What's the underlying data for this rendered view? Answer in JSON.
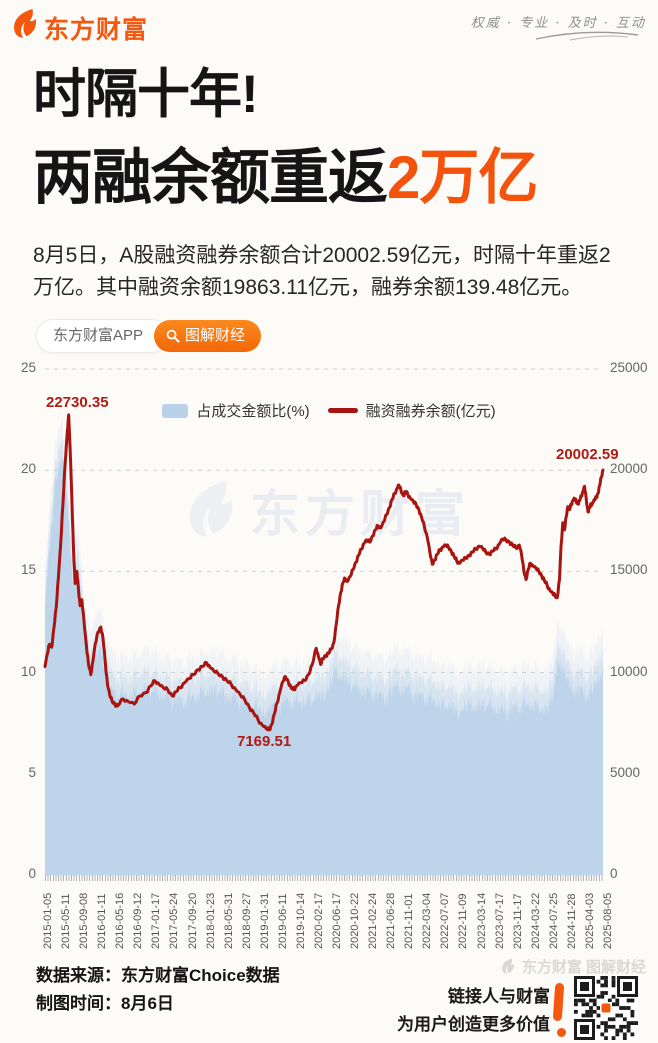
{
  "header": {
    "logo_text": "东方财富",
    "slogan": "权威 · 专业 · 及时 · 互动"
  },
  "title": {
    "line1": "时隔十年!",
    "line2_black": "两融余额重返",
    "line2_orange": "2万亿"
  },
  "intro": "8月5日，A股融资融券余额合计20002.59亿元，时隔十年重返2万亿。其中融资余额19863.11亿元，融券余额139.48亿元。",
  "badges": {
    "app": "东方财富APP",
    "column": "图解财经"
  },
  "colors": {
    "brand_orange": "#f4570e",
    "line_red": "#a81410",
    "area_blue": "#bdd4ea",
    "annotation_red": "#b01b12",
    "grid_gray": "#cfcfcf"
  },
  "watermark": {
    "chart": "东方财富",
    "footer": "东方财富 图解财经"
  },
  "chart_data": {
    "type": "line+area",
    "legend_position": "top",
    "grid": true,
    "left_axis": {
      "title": "占成交金额比(%)",
      "ticks": [
        25,
        20,
        15,
        10,
        5,
        0
      ],
      "max": 25
    },
    "right_axis": {
      "title": "融资融券余额(亿元)",
      "ticks": [
        25000,
        20000,
        15000,
        10000,
        5000,
        0
      ],
      "max": 25000
    },
    "x_labels": [
      "2015-01-05",
      "2015-05-11",
      "2015-09-08",
      "2016-01-11",
      "2016-05-16",
      "2016-09-12",
      "2017-01-17",
      "2017-05-24",
      "2017-09-20",
      "2018-01-23",
      "2018-05-31",
      "2018-09-27",
      "2019-01-31",
      "2019-06-11",
      "2019-10-14",
      "2020-02-17",
      "2020-06-17",
      "2020-10-22",
      "2021-02-24",
      "2021-06-28",
      "2021-11-01",
      "2022-03-04",
      "2022-07-07",
      "2022-11-09",
      "2023-03-14",
      "2023-07-17",
      "2023-11-17",
      "2024-03-22",
      "2024-07-25",
      "2024-11-28",
      "2025-04-03",
      "2025-08-05"
    ],
    "annotations": [
      {
        "text": "22730.35",
        "series": "融资融券余额(亿元)",
        "note": "2015 peak"
      },
      {
        "text": "7169.51",
        "series": "融资融券余额(亿元)",
        "note": "2019 trough"
      },
      {
        "text": "20002.59",
        "series": "融资融券余额(亿元)",
        "note": "2025-08-05 latest"
      }
    ],
    "noise_pattern": [
      0,
      0.55,
      -0.4,
      0.85,
      -0.65,
      0.35,
      -0.9,
      0.6,
      -0.25,
      1.0,
      -0.75,
      0.3
    ],
    "series": [
      {
        "name": "占成交金额比(%)",
        "type": "area",
        "axis": "left",
        "color": "#bdd4ea",
        "noise_amp": 0.5,
        "halo_offsets": [
          0.9,
          1.9
        ],
        "halo_opacities": [
          0.45,
          0.18
        ],
        "t_uniform": true,
        "values": [
          13.2,
          16.8,
          19.6,
          20.6,
          18.4,
          14.2,
          15.1,
          11.8,
          10.2,
          10.8,
          11.2,
          9.6,
          9.2,
          8.7,
          9.1,
          8.6,
          9.2,
          8.8,
          9.4,
          8.9,
          9.2,
          8.7,
          9.0,
          8.5,
          8.8,
          8.4,
          9.0,
          8.6,
          9.2,
          8.8,
          9.3,
          8.9,
          9.1,
          8.6,
          8.9,
          8.4,
          8.7,
          8.2,
          8.4,
          7.9,
          8.1,
          8.5,
          8.2,
          8.8,
          8.4,
          8.7,
          8.3,
          8.8,
          8.5,
          9.0,
          8.8,
          9.3,
          10.2,
          9.6,
          9.8,
          9.2,
          9.4,
          8.9,
          9.2,
          8.8,
          9.0,
          8.6,
          9.1,
          9.4,
          9.0,
          9.3,
          8.8,
          9.0,
          8.6,
          8.9,
          8.4,
          8.6,
          8.2,
          8.5,
          7.9,
          8.2,
          8.5,
          8.1,
          8.6,
          8.2,
          8.5,
          8.0,
          8.3,
          7.9,
          8.4,
          8.1,
          8.6,
          8.2,
          8.5,
          8.0,
          8.3,
          8.8,
          10.6,
          10.0,
          9.4,
          9.0,
          9.3,
          8.7,
          9.2,
          9.6,
          10.1
        ]
      },
      {
        "name": "融资融券余额(亿元)",
        "type": "line",
        "axis": "right",
        "color": "#a81410",
        "noise_amp": 90,
        "points": [
          [
            0,
            10300
          ],
          [
            0.004,
            10900
          ],
          [
            0.008,
            11400
          ],
          [
            0.012,
            11250
          ],
          [
            0.016,
            12200
          ],
          [
            0.02,
            13200
          ],
          [
            0.024,
            14700
          ],
          [
            0.028,
            16300
          ],
          [
            0.032,
            18300
          ],
          [
            0.036,
            20300
          ],
          [
            0.04,
            21900
          ],
          [
            0.0425,
            22730.35
          ],
          [
            0.045,
            21100
          ],
          [
            0.048,
            18700
          ],
          [
            0.051,
            16100
          ],
          [
            0.054,
            14400
          ],
          [
            0.057,
            15000
          ],
          [
            0.06,
            14100
          ],
          [
            0.063,
            13300
          ],
          [
            0.066,
            13600
          ],
          [
            0.07,
            12500
          ],
          [
            0.074,
            11400
          ],
          [
            0.078,
            10400
          ],
          [
            0.082,
            9900
          ],
          [
            0.086,
            10600
          ],
          [
            0.09,
            11400
          ],
          [
            0.095,
            12000
          ],
          [
            0.1,
            12250
          ],
          [
            0.104,
            11700
          ],
          [
            0.108,
            10500
          ],
          [
            0.112,
            9400
          ],
          [
            0.116,
            8900
          ],
          [
            0.12,
            8600
          ],
          [
            0.125,
            8450
          ],
          [
            0.13,
            8350
          ],
          [
            0.14,
            8700
          ],
          [
            0.15,
            8550
          ],
          [
            0.16,
            8450
          ],
          [
            0.17,
            8850
          ],
          [
            0.18,
            9000
          ],
          [
            0.19,
            9350
          ],
          [
            0.197,
            9600
          ],
          [
            0.205,
            9400
          ],
          [
            0.212,
            9250
          ],
          [
            0.22,
            9150
          ],
          [
            0.228,
            8850
          ],
          [
            0.235,
            9050
          ],
          [
            0.242,
            9250
          ],
          [
            0.25,
            9500
          ],
          [
            0.258,
            9700
          ],
          [
            0.266,
            9900
          ],
          [
            0.274,
            10150
          ],
          [
            0.282,
            10300
          ],
          [
            0.29,
            10480
          ],
          [
            0.296,
            10250
          ],
          [
            0.302,
            10100
          ],
          [
            0.31,
            9950
          ],
          [
            0.318,
            9800
          ],
          [
            0.326,
            9600
          ],
          [
            0.334,
            9400
          ],
          [
            0.342,
            9150
          ],
          [
            0.35,
            8900
          ],
          [
            0.358,
            8650
          ],
          [
            0.366,
            8300
          ],
          [
            0.374,
            8000
          ],
          [
            0.382,
            7650
          ],
          [
            0.39,
            7380
          ],
          [
            0.396,
            7250
          ],
          [
            0.402,
            7169.51
          ],
          [
            0.406,
            7420
          ],
          [
            0.411,
            7950
          ],
          [
            0.416,
            8500
          ],
          [
            0.421,
            9050
          ],
          [
            0.426,
            9550
          ],
          [
            0.431,
            9800
          ],
          [
            0.436,
            9550
          ],
          [
            0.441,
            9250
          ],
          [
            0.446,
            9150
          ],
          [
            0.451,
            9350
          ],
          [
            0.458,
            9500
          ],
          [
            0.465,
            9600
          ],
          [
            0.472,
            9900
          ],
          [
            0.479,
            10400
          ],
          [
            0.486,
            11200
          ],
          [
            0.49,
            10800
          ],
          [
            0.494,
            10400
          ],
          [
            0.498,
            10700
          ],
          [
            0.503,
            10850
          ],
          [
            0.508,
            10950
          ],
          [
            0.513,
            11150
          ],
          [
            0.518,
            11500
          ],
          [
            0.522,
            12400
          ],
          [
            0.526,
            13300
          ],
          [
            0.53,
            13950
          ],
          [
            0.534,
            14450
          ],
          [
            0.538,
            14650
          ],
          [
            0.542,
            14500
          ],
          [
            0.547,
            14750
          ],
          [
            0.552,
            15100
          ],
          [
            0.557,
            15450
          ],
          [
            0.562,
            15800
          ],
          [
            0.567,
            16100
          ],
          [
            0.572,
            16400
          ],
          [
            0.577,
            16550
          ],
          [
            0.582,
            16450
          ],
          [
            0.587,
            16750
          ],
          [
            0.592,
            17050
          ],
          [
            0.597,
            17250
          ],
          [
            0.602,
            17150
          ],
          [
            0.607,
            17450
          ],
          [
            0.612,
            17800
          ],
          [
            0.617,
            18150
          ],
          [
            0.622,
            18550
          ],
          [
            0.627,
            18850
          ],
          [
            0.631,
            19100
          ],
          [
            0.634,
            19270
          ],
          [
            0.638,
            19000
          ],
          [
            0.642,
            18750
          ],
          [
            0.646,
            18950
          ],
          [
            0.65,
            18800
          ],
          [
            0.655,
            18600
          ],
          [
            0.66,
            18450
          ],
          [
            0.665,
            18300
          ],
          [
            0.67,
            18050
          ],
          [
            0.675,
            17650
          ],
          [
            0.68,
            17200
          ],
          [
            0.685,
            16700
          ],
          [
            0.69,
            15900
          ],
          [
            0.694,
            15350
          ],
          [
            0.698,
            15550
          ],
          [
            0.703,
            15850
          ],
          [
            0.708,
            16050
          ],
          [
            0.713,
            16200
          ],
          [
            0.718,
            16300
          ],
          [
            0.723,
            16200
          ],
          [
            0.728,
            16000
          ],
          [
            0.733,
            15750
          ],
          [
            0.738,
            15500
          ],
          [
            0.743,
            15400
          ],
          [
            0.748,
            15550
          ],
          [
            0.754,
            15650
          ],
          [
            0.76,
            15800
          ],
          [
            0.766,
            15950
          ],
          [
            0.772,
            16100
          ],
          [
            0.778,
            16250
          ],
          [
            0.784,
            16150
          ],
          [
            0.79,
            15950
          ],
          [
            0.796,
            15850
          ],
          [
            0.802,
            16000
          ],
          [
            0.808,
            16100
          ],
          [
            0.814,
            16350
          ],
          [
            0.82,
            16600
          ],
          [
            0.826,
            16550
          ],
          [
            0.832,
            16450
          ],
          [
            0.838,
            16300
          ],
          [
            0.844,
            16150
          ],
          [
            0.85,
            16300
          ],
          [
            0.854,
            15850
          ],
          [
            0.858,
            15050
          ],
          [
            0.862,
            14600
          ],
          [
            0.866,
            15100
          ],
          [
            0.87,
            15400
          ],
          [
            0.875,
            15250
          ],
          [
            0.88,
            15150
          ],
          [
            0.885,
            15000
          ],
          [
            0.89,
            14800
          ],
          [
            0.895,
            14550
          ],
          [
            0.9,
            14300
          ],
          [
            0.905,
            14050
          ],
          [
            0.91,
            13900
          ],
          [
            0.914,
            13800
          ],
          [
            0.918,
            13700
          ],
          [
            0.922,
            14600
          ],
          [
            0.925,
            16300
          ],
          [
            0.928,
            17400
          ],
          [
            0.931,
            17050
          ],
          [
            0.934,
            17700
          ],
          [
            0.937,
            18200
          ],
          [
            0.94,
            18050
          ],
          [
            0.943,
            18300
          ],
          [
            0.946,
            18500
          ],
          [
            0.949,
            18600
          ],
          [
            0.952,
            18450
          ],
          [
            0.955,
            18350
          ],
          [
            0.958,
            18500
          ],
          [
            0.961,
            18700
          ],
          [
            0.964,
            18950
          ],
          [
            0.967,
            19200
          ],
          [
            0.97,
            18550
          ],
          [
            0.973,
            17950
          ],
          [
            0.976,
            18150
          ],
          [
            0.979,
            18300
          ],
          [
            0.982,
            18400
          ],
          [
            0.985,
            18550
          ],
          [
            0.988,
            18650
          ],
          [
            0.991,
            18850
          ],
          [
            0.994,
            19250
          ],
          [
            0.997,
            19650
          ],
          [
            1,
            20002.59
          ]
        ]
      }
    ]
  },
  "footer": {
    "source_line": "数据来源：东方财富Choice数据",
    "time_line": "制图时间：8月6日",
    "slogan1": "链接人与财富",
    "slogan2": "为用户创造更多价值"
  }
}
